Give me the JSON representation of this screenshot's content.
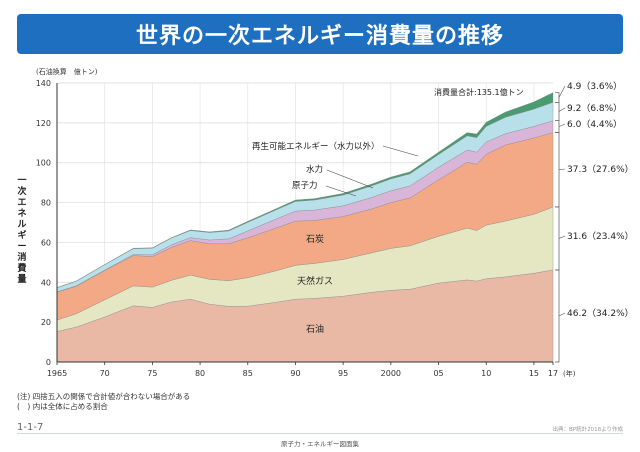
{
  "title": "世界の一次エネルギー消費量の推移",
  "notes": [
    "(注) 四捨五入の関係で合計値が合わない場合がある",
    "(　) 内は全体に占める割合"
  ],
  "page_number": "1-1-7",
  "source": "出典：BP統計2018より作成",
  "footer": "原子力・エネルギー図面集",
  "colors": {
    "oil": "#e9b9a6",
    "gas": "#e5e7c3",
    "coal": "#f3a986",
    "nuclear": "#d8b5d9",
    "hydro": "#b8e0ea",
    "renewable": "#4a9a72",
    "title_bar": "#1f6fc0"
  },
  "chart_data": {
    "type": "area",
    "stacked": true,
    "unit_label": "(石油換算　億トン)",
    "ylabel": "一次エネルギー消費量",
    "xlabel": "(年)",
    "ylim": [
      0,
      140
    ],
    "yticks": [
      0,
      20,
      40,
      60,
      80,
      100,
      120,
      140
    ],
    "xlim": [
      1965,
      2017
    ],
    "xticks": [
      {
        "value": 1965,
        "label": "1965"
      },
      {
        "value": 1970,
        "label": "70"
      },
      {
        "value": 1975,
        "label": "75"
      },
      {
        "value": 1980,
        "label": "80"
      },
      {
        "value": 1985,
        "label": "85"
      },
      {
        "value": 1990,
        "label": "90"
      },
      {
        "value": 1995,
        "label": "95"
      },
      {
        "value": 2000,
        "label": "2000"
      },
      {
        "value": 2005,
        "label": "05"
      },
      {
        "value": 2010,
        "label": "10"
      },
      {
        "value": 2015,
        "label": "15"
      },
      {
        "value": 2017,
        "label": "17"
      }
    ],
    "grid": true,
    "x": [
      1965,
      1967,
      1970,
      1973,
      1975,
      1977,
      1979,
      1981,
      1983,
      1985,
      1988,
      1990,
      1992,
      1995,
      1998,
      2000,
      2002,
      2005,
      2008,
      2009,
      2010,
      2012,
      2015,
      2017
    ],
    "series": [
      {
        "key": "oil",
        "name": "石油",
        "values": [
          15.3,
          17.5,
          22.6,
          28.2,
          27.4,
          30.1,
          31.5,
          29.0,
          27.9,
          28.0,
          30.0,
          31.5,
          31.9,
          33.0,
          35.0,
          36.0,
          36.5,
          39.6,
          41.2,
          40.6,
          41.8,
          42.7,
          44.5,
          46.2
        ]
      },
      {
        "key": "gas",
        "name": "天然ガス",
        "values": [
          5.8,
          6.7,
          8.6,
          10.0,
          10.2,
          10.9,
          12.1,
          12.5,
          12.9,
          14.3,
          15.8,
          17.0,
          17.6,
          18.5,
          19.8,
          21.0,
          21.8,
          23.5,
          26.0,
          25.4,
          26.9,
          28.0,
          29.6,
          31.6
        ]
      },
      {
        "key": "coal",
        "name": "石炭",
        "values": [
          14.0,
          13.8,
          14.7,
          15.2,
          15.3,
          16.5,
          17.3,
          17.8,
          18.5,
          20.0,
          21.5,
          22.2,
          21.5,
          21.5,
          22.0,
          23.0,
          24.0,
          28.3,
          33.0,
          33.2,
          35.5,
          38.2,
          38.3,
          37.3
        ]
      },
      {
        "key": "nuclear",
        "name": "原子力",
        "values": [
          0.1,
          0.2,
          0.2,
          0.5,
          0.9,
          1.3,
          1.5,
          1.9,
          2.5,
          3.5,
          4.5,
          5.0,
          5.2,
          5.4,
          5.8,
          5.9,
          6.0,
          6.3,
          6.2,
          6.1,
          6.2,
          5.6,
          5.8,
          6.0
        ]
      },
      {
        "key": "hydro",
        "name": "水力",
        "values": [
          2.1,
          2.3,
          2.7,
          3.0,
          3.3,
          3.4,
          3.6,
          3.8,
          4.0,
          4.3,
          4.6,
          4.9,
          5.1,
          5.4,
          5.8,
          6.0,
          6.1,
          6.4,
          7.1,
          7.3,
          7.8,
          8.3,
          8.7,
          9.2
        ]
      },
      {
        "key": "renewable",
        "name": "再生可能エネルギー（水力以外）",
        "values": [
          0.1,
          0.1,
          0.1,
          0.2,
          0.2,
          0.2,
          0.3,
          0.3,
          0.4,
          0.5,
          0.6,
          0.7,
          0.7,
          0.8,
          0.9,
          0.9,
          1.0,
          1.2,
          1.6,
          1.8,
          2.1,
          2.6,
          3.6,
          4.9
        ]
      }
    ],
    "right_labels": [
      {
        "key": "renewable",
        "text": "4.9（3.6%）"
      },
      {
        "key": "hydro",
        "text": "9.2（6.8%）"
      },
      {
        "key": "nuclear",
        "text": "6.0（4.4%）"
      },
      {
        "key": "coal",
        "text": "37.3（27.6%）"
      },
      {
        "key": "gas",
        "text": "31.6（23.4%）"
      },
      {
        "key": "oil",
        "text": "46.2（34.2%）"
      }
    ],
    "total_annotation": "消費量合計:135.1億トン",
    "inner_labels": {
      "oil": "石油",
      "gas": "天然ガス",
      "coal": "石炭",
      "nuclear": "原子力",
      "hydro": "水力",
      "renewable": "再生可能エネルギー（水力以外）"
    }
  }
}
